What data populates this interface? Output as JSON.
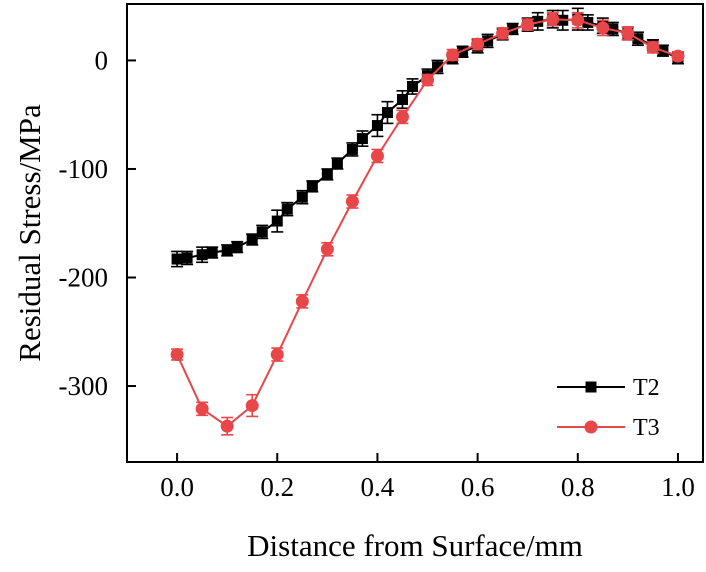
{
  "chart_data": {
    "type": "line",
    "title": "",
    "xlabel": "Distance from Surface/mm",
    "ylabel": "Residual Stress/MPa",
    "xlim": [
      -0.1,
      1.05
    ],
    "ylim": [
      -370,
      52
    ],
    "x_ticks": [
      0.0,
      0.2,
      0.4,
      0.6,
      0.8,
      1.0
    ],
    "x_tick_labels": [
      "0.0",
      "0.2",
      "0.4",
      "0.6",
      "0.8",
      "1.0"
    ],
    "y_ticks": [
      0,
      -100,
      -200,
      -300
    ],
    "y_tick_labels": [
      "0",
      "-100",
      "-200",
      "-300"
    ],
    "grid": false,
    "legend_position": "bottom-right",
    "series": [
      {
        "name": "T2",
        "color": "#000000",
        "marker": "square",
        "x": [
          0.0,
          0.02,
          0.05,
          0.07,
          0.1,
          0.12,
          0.15,
          0.17,
          0.2,
          0.22,
          0.25,
          0.27,
          0.3,
          0.32,
          0.35,
          0.37,
          0.4,
          0.42,
          0.45,
          0.47,
          0.5,
          0.52,
          0.55,
          0.57,
          0.6,
          0.62,
          0.65,
          0.67,
          0.7,
          0.72,
          0.75,
          0.77,
          0.8,
          0.82,
          0.85,
          0.87,
          0.9,
          0.92,
          0.95,
          0.97,
          1.0
        ],
        "values": [
          -183,
          -182,
          -179,
          -177,
          -175,
          -172,
          -165,
          -158,
          -148,
          -137,
          -126,
          -116,
          -105,
          -95,
          -82,
          -72,
          -60,
          -48,
          -36,
          -24,
          -14,
          -6,
          2,
          8,
          13,
          18,
          24,
          29,
          33,
          36,
          38,
          37,
          38,
          35,
          32,
          29,
          25,
          20,
          14,
          9,
          2
        ],
        "error": [
          7,
          6,
          7,
          5,
          5,
          5,
          5,
          6,
          10,
          6,
          6,
          5,
          5,
          5,
          6,
          7,
          10,
          10,
          8,
          7,
          6,
          6,
          5,
          5,
          6,
          6,
          5,
          5,
          6,
          8,
          8,
          9,
          10,
          7,
          7,
          6,
          6,
          6,
          5,
          5,
          5
        ]
      },
      {
        "name": "T3",
        "color": "#e8474a",
        "marker": "circle",
        "x": [
          0.0,
          0.05,
          0.1,
          0.15,
          0.2,
          0.25,
          0.3,
          0.35,
          0.4,
          0.45,
          0.5,
          0.55,
          0.6,
          0.65,
          0.7,
          0.75,
          0.8,
          0.85,
          0.9,
          0.95,
          1.0
        ],
        "values": [
          -271,
          -321,
          -337,
          -318,
          -271,
          -222,
          -174,
          -130,
          -88,
          -52,
          -18,
          5,
          15,
          25,
          33,
          38,
          37,
          30,
          25,
          12,
          4
        ],
        "error": [
          5,
          6,
          8,
          10,
          6,
          6,
          6,
          6,
          6,
          6,
          5,
          5,
          5,
          5,
          5,
          6,
          7,
          7,
          6,
          5,
          4
        ]
      }
    ]
  }
}
